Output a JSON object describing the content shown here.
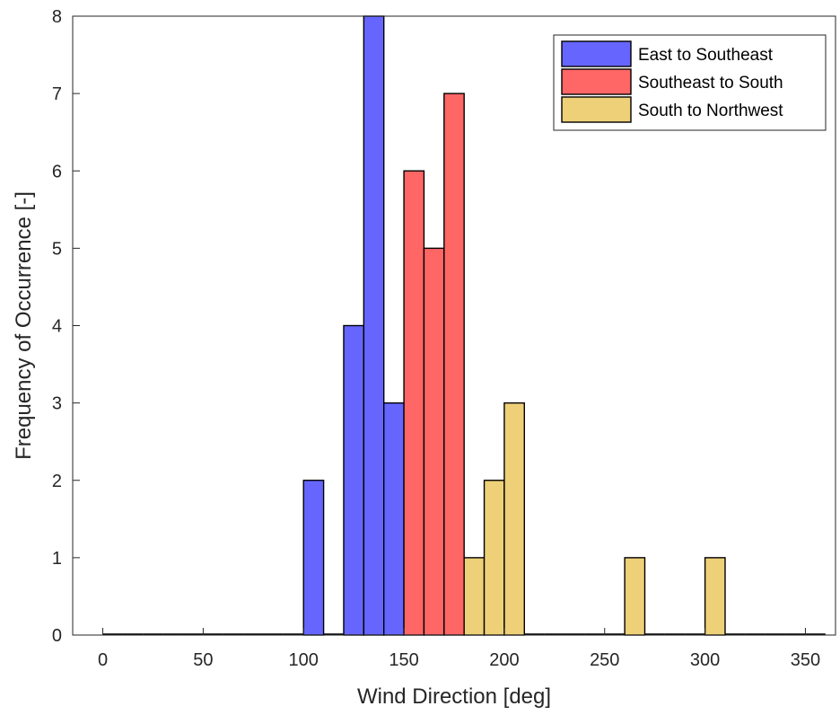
{
  "chart_data": {
    "type": "bar",
    "subtype": "histogram",
    "xlabel": "Wind Direction [deg]",
    "ylabel": "Frequency of Occurrence [-]",
    "xlim": [
      -15,
      365
    ],
    "ylim": [
      0,
      8
    ],
    "xticks": [
      0,
      50,
      100,
      150,
      200,
      250,
      300,
      350
    ],
    "yticks": [
      0,
      1,
      2,
      3,
      4,
      5,
      6,
      7,
      8
    ],
    "bin_width": 10,
    "grid": false,
    "legend_position": "top-right",
    "series": [
      {
        "name": "East to Southeast",
        "color": "#6666ff",
        "bins": [
          {
            "x": [
              100,
              110
            ],
            "count": 2
          },
          {
            "x": [
              120,
              130
            ],
            "count": 4
          },
          {
            "x": [
              130,
              140
            ],
            "count": 8
          },
          {
            "x": [
              140,
              150
            ],
            "count": 3
          }
        ]
      },
      {
        "name": "Southeast to South",
        "color": "#ff6666",
        "bins": [
          {
            "x": [
              150,
              160
            ],
            "count": 6
          },
          {
            "x": [
              160,
              170
            ],
            "count": 5
          },
          {
            "x": [
              170,
              180
            ],
            "count": 7
          }
        ]
      },
      {
        "name": "South to Northwest",
        "color": "#edd078",
        "bins": [
          {
            "x": [
              180,
              190
            ],
            "count": 1
          },
          {
            "x": [
              190,
              200
            ],
            "count": 2
          },
          {
            "x": [
              200,
              210
            ],
            "count": 3
          },
          {
            "x": [
              260,
              270
            ],
            "count": 1
          },
          {
            "x": [
              300,
              310
            ],
            "count": 1
          }
        ]
      }
    ]
  }
}
